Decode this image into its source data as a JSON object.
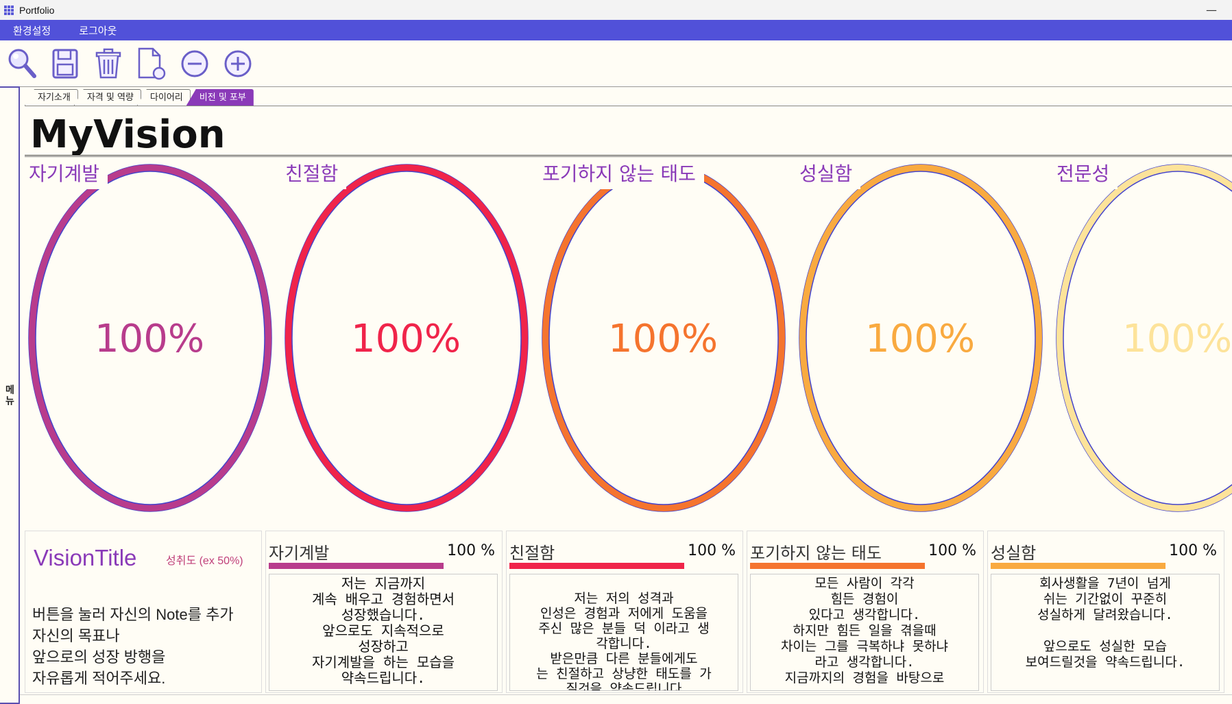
{
  "window": {
    "title": "Portfolio",
    "minimize": "—"
  },
  "menubar": {
    "items": [
      "환경설정",
      "로그아웃"
    ]
  },
  "toolbar": {
    "icons": [
      "magnifier-icon",
      "save-icon",
      "trash-icon",
      "new-document-icon",
      "zoom-out-icon",
      "zoom-in-icon"
    ]
  },
  "side_menu": {
    "label": "메뉴"
  },
  "tabs": [
    {
      "label": "자기소개",
      "active": false
    },
    {
      "label": "자격 및 역량",
      "active": false
    },
    {
      "label": "다이어리",
      "active": false
    },
    {
      "label": "비전 및 포부",
      "active": true
    }
  ],
  "page": {
    "title": "MyVision"
  },
  "colors": {
    "accent": "#5151d9",
    "tab_active": "#8a3ab8",
    "gauge1": "#b83c8c",
    "gauge2": "#f0244a",
    "gauge3": "#f5742e",
    "gauge4": "#f9aa40",
    "gauge5": "#fde39a"
  },
  "gauges": [
    {
      "label": "자기계발",
      "percent": "100%",
      "value": 1.0,
      "color": "#b83c8c"
    },
    {
      "label": "친절함",
      "percent": "100%",
      "value": 1.0,
      "color": "#f0244a"
    },
    {
      "label": "포기하지 않는 태도",
      "percent": "100%",
      "value": 1.0,
      "color": "#f5742e"
    },
    {
      "label": "성실함",
      "percent": "100%",
      "value": 1.0,
      "color": "#f9aa40"
    },
    {
      "label": "전문성",
      "percent": "100%",
      "value": 1.0,
      "color": "#fde39a"
    }
  ],
  "vision_card": {
    "title": "VisionTitle",
    "achievement_hint": "성취도 (ex 50%)",
    "help_lines": [
      "버튼을 눌러 자신의 Note를 추가",
      "자신의 목표나",
      "앞으로의 성장 방행을",
      "자유롭게 적어주세요."
    ]
  },
  "cards": [
    {
      "title": "자기계발",
      "percent": "100 %",
      "color": "#b83c8c",
      "body": "저는 지금까지\n계속 배우고 경험하면서\n성장했습니다.\n앞으로도 지속적으로\n성장하고\n자기계발을 하는 모습을\n약속드립니다."
    },
    {
      "title": "친절함",
      "percent": "100 %",
      "color": "#f0244a",
      "body": "\n저는 저의 성격과\n인성은 경험과 저에게 도움을\n주신 많은 분들 덕 이라고 생\n각합니다.\n받은만큼 다른 분들에게도\n는 친절하고 상냥한 태도를 가\n질것을 약속드립니다"
    },
    {
      "title": "포기하지 않는 태도",
      "percent": "100 %",
      "color": "#f5742e",
      "body": "모든 사람이 각각\n힘든 경험이\n있다고 생각합니다.\n하지만 힘든 일을 겪을때\n차이는 그를 극복하냐 못하냐\n라고 생각합니다.\n지금까지의 경험을 바탕으로"
    },
    {
      "title": "성실함",
      "percent": "100 %",
      "color": "#f9aa40",
      "body": "회사생활을 7년이 넘게\n쉬는 기간없이 꾸준히\n성실하게 달려왔습니다.\n\n앞으로도 성실한 모습\n보여드릴것을 약속드립니다."
    }
  ]
}
